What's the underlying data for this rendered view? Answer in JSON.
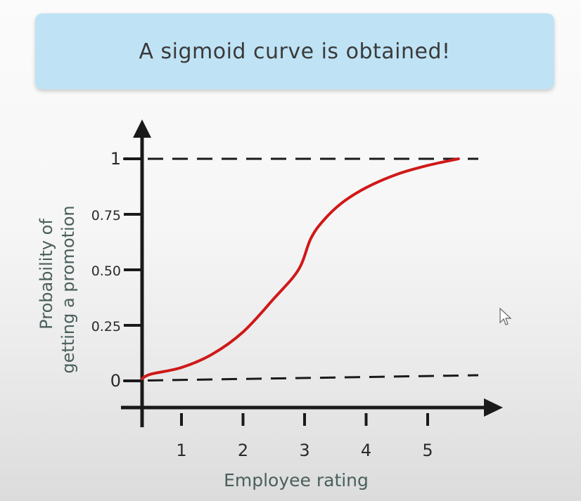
{
  "banner": {
    "text": "A sigmoid curve is obtained!"
  },
  "chart_data": {
    "type": "line",
    "title": "",
    "xlabel": "Employee rating",
    "ylabel_line1": "Probability of",
    "ylabel_line2": "getting a promotion",
    "x_ticks": [
      "1",
      "2",
      "3",
      "4",
      "5"
    ],
    "y_ticks": [
      "0",
      "0.25",
      "0.50",
      "0.75",
      "1"
    ],
    "y_tick_values": [
      0,
      0.25,
      0.5,
      0.75,
      1
    ],
    "x_tick_values": [
      1,
      2,
      3,
      4,
      5
    ],
    "xlim": [
      0,
      5.8
    ],
    "ylim": [
      0,
      1
    ],
    "asymptotes": [
      0,
      1
    ],
    "series": [
      {
        "color": "#d01818",
        "x": [
          0,
          0.5,
          1.0,
          1.5,
          2.0,
          2.5,
          2.9,
          3.1,
          3.3,
          3.6,
          4.0,
          4.5,
          5.0,
          5.5
        ],
        "y": [
          0.01,
          0.03,
          0.06,
          0.12,
          0.22,
          0.37,
          0.5,
          0.64,
          0.72,
          0.8,
          0.87,
          0.93,
          0.97,
          1.0
        ]
      }
    ],
    "colors": {
      "axis": "#1a1a1a",
      "dashed": "#1a1a1a",
      "curve": "#d01818",
      "label": "#4a5f5c",
      "tick_label": "#2a2a2a"
    }
  }
}
